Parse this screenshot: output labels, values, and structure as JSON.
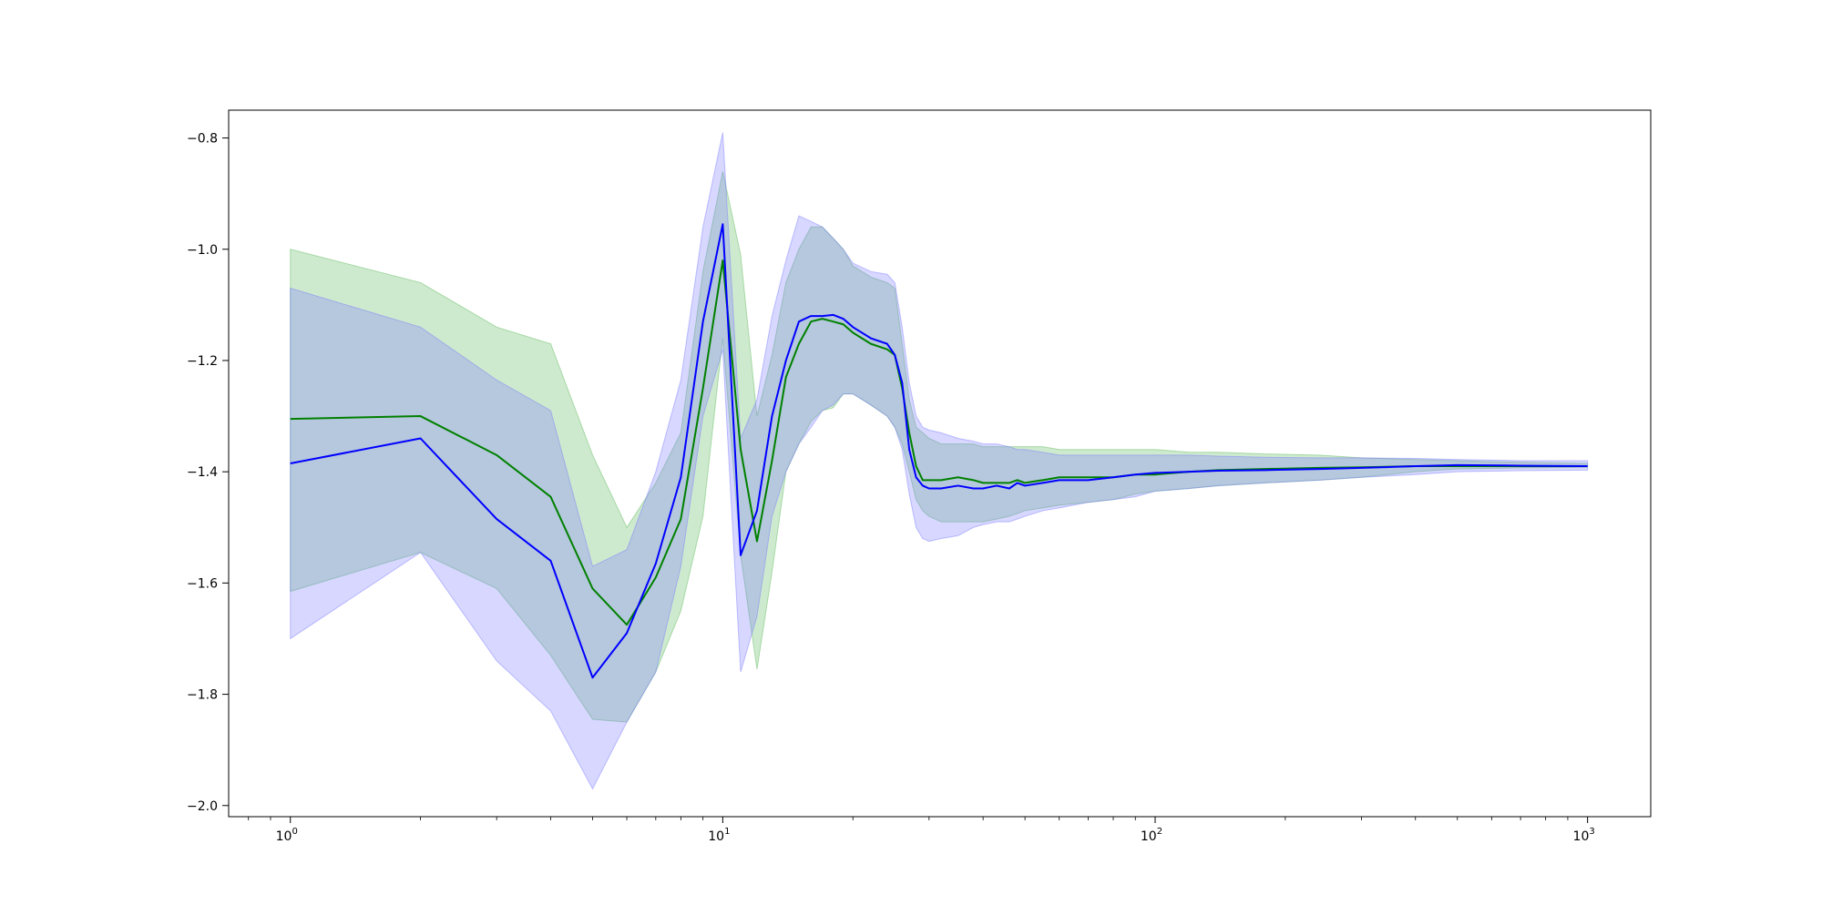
{
  "chart_data": {
    "type": "line",
    "title": "",
    "xlabel": "",
    "ylabel": "",
    "x_scale": "log",
    "xlim": [
      0.72,
      1400
    ],
    "ylim": [
      -2.02,
      -0.75
    ],
    "grid": false,
    "legend": "none",
    "x_ticks": [
      {
        "value": 1,
        "base": "10",
        "exp": "0"
      },
      {
        "value": 10,
        "base": "10",
        "exp": "1"
      },
      {
        "value": 100,
        "base": "10",
        "exp": "2"
      },
      {
        "value": 1000,
        "base": "10",
        "exp": "3"
      }
    ],
    "y_ticks": [
      {
        "value": -0.8,
        "label": "−0.8"
      },
      {
        "value": -1.0,
        "label": "−1.0"
      },
      {
        "value": -1.2,
        "label": "−1.2"
      },
      {
        "value": -1.4,
        "label": "−1.4"
      },
      {
        "value": -1.6,
        "label": "−1.6"
      },
      {
        "value": -1.8,
        "label": "−1.8"
      },
      {
        "value": -2.0,
        "label": "−2.0"
      }
    ],
    "series": [
      {
        "color": "#008000",
        "band_color": "#5cb85c",
        "x": [
          1,
          2,
          3,
          4,
          5,
          6,
          7,
          8,
          9,
          10,
          11,
          12,
          13,
          14,
          15,
          16,
          17,
          18,
          19,
          20,
          22,
          24,
          25,
          26,
          27,
          28,
          29,
          30,
          32,
          35,
          38,
          40,
          43,
          46,
          48,
          50,
          55,
          60,
          70,
          80,
          90,
          100,
          120,
          140,
          180,
          240,
          300,
          400,
          500,
          700,
          1000
        ],
        "y": [
          -1.305,
          -1.3,
          -1.37,
          -1.445,
          -1.61,
          -1.675,
          -1.59,
          -1.485,
          -1.25,
          -1.02,
          -1.36,
          -1.525,
          -1.38,
          -1.23,
          -1.17,
          -1.13,
          -1.125,
          -1.13,
          -1.135,
          -1.15,
          -1.17,
          -1.18,
          -1.19,
          -1.25,
          -1.33,
          -1.39,
          -1.415,
          -1.415,
          -1.415,
          -1.41,
          -1.415,
          -1.42,
          -1.42,
          -1.42,
          -1.415,
          -1.42,
          -1.415,
          -1.41,
          -1.41,
          -1.41,
          -1.405,
          -1.405,
          -1.4,
          -1.397,
          -1.395,
          -1.393,
          -1.392,
          -1.39,
          -1.39,
          -1.39,
          -1.39
        ],
        "lower": [
          -1.615,
          -1.545,
          -1.61,
          -1.73,
          -1.845,
          -1.85,
          -1.76,
          -1.65,
          -1.48,
          -1.16,
          -1.55,
          -1.755,
          -1.58,
          -1.4,
          -1.35,
          -1.31,
          -1.29,
          -1.285,
          -1.26,
          -1.26,
          -1.28,
          -1.3,
          -1.32,
          -1.35,
          -1.4,
          -1.45,
          -1.47,
          -1.48,
          -1.49,
          -1.49,
          -1.49,
          -1.49,
          -1.485,
          -1.48,
          -1.475,
          -1.47,
          -1.465,
          -1.46,
          -1.455,
          -1.45,
          -1.44,
          -1.435,
          -1.43,
          -1.425,
          -1.42,
          -1.415,
          -1.41,
          -1.4,
          -1.395,
          -1.393,
          -1.392
        ],
        "upper": [
          -1.0,
          -1.06,
          -1.14,
          -1.17,
          -1.37,
          -1.5,
          -1.42,
          -1.33,
          -1.04,
          -0.86,
          -1.01,
          -1.3,
          -1.19,
          -1.06,
          -1.0,
          -0.96,
          -0.96,
          -0.98,
          -1.0,
          -1.03,
          -1.05,
          -1.06,
          -1.07,
          -1.17,
          -1.27,
          -1.32,
          -1.33,
          -1.34,
          -1.35,
          -1.35,
          -1.35,
          -1.355,
          -1.355,
          -1.355,
          -1.355,
          -1.355,
          -1.355,
          -1.36,
          -1.36,
          -1.36,
          -1.36,
          -1.36,
          -1.365,
          -1.365,
          -1.368,
          -1.37,
          -1.375,
          -1.378,
          -1.38,
          -1.383,
          -1.385
        ]
      },
      {
        "color": "#0000ff",
        "band_color": "#7b7bff",
        "x": [
          1,
          2,
          3,
          4,
          5,
          6,
          7,
          8,
          9,
          10,
          11,
          12,
          13,
          14,
          15,
          16,
          17,
          18,
          19,
          20,
          22,
          24,
          25,
          26,
          27,
          28,
          29,
          30,
          32,
          35,
          38,
          40,
          43,
          46,
          48,
          50,
          55,
          60,
          70,
          80,
          90,
          100,
          120,
          140,
          180,
          240,
          300,
          400,
          500,
          700,
          1000
        ],
        "y": [
          -1.385,
          -1.34,
          -1.485,
          -1.56,
          -1.77,
          -1.69,
          -1.565,
          -1.41,
          -1.13,
          -0.955,
          -1.55,
          -1.47,
          -1.3,
          -1.2,
          -1.13,
          -1.12,
          -1.12,
          -1.118,
          -1.125,
          -1.14,
          -1.16,
          -1.17,
          -1.19,
          -1.24,
          -1.36,
          -1.41,
          -1.425,
          -1.43,
          -1.43,
          -1.425,
          -1.43,
          -1.43,
          -1.425,
          -1.43,
          -1.42,
          -1.425,
          -1.42,
          -1.415,
          -1.415,
          -1.41,
          -1.405,
          -1.402,
          -1.4,
          -1.398,
          -1.397,
          -1.395,
          -1.393,
          -1.39,
          -1.388,
          -1.389,
          -1.39
        ],
        "lower": [
          -1.7,
          -1.545,
          -1.74,
          -1.83,
          -1.97,
          -1.85,
          -1.76,
          -1.57,
          -1.3,
          -1.18,
          -1.76,
          -1.66,
          -1.48,
          -1.4,
          -1.35,
          -1.32,
          -1.29,
          -1.28,
          -1.26,
          -1.26,
          -1.28,
          -1.3,
          -1.32,
          -1.36,
          -1.44,
          -1.5,
          -1.52,
          -1.525,
          -1.52,
          -1.515,
          -1.5,
          -1.495,
          -1.49,
          -1.49,
          -1.485,
          -1.48,
          -1.47,
          -1.465,
          -1.455,
          -1.45,
          -1.445,
          -1.435,
          -1.43,
          -1.425,
          -1.42,
          -1.415,
          -1.41,
          -1.405,
          -1.4,
          -1.398,
          -1.397
        ],
        "upper": [
          -1.07,
          -1.14,
          -1.235,
          -1.29,
          -1.57,
          -1.54,
          -1.4,
          -1.235,
          -0.96,
          -0.79,
          -1.34,
          -1.27,
          -1.12,
          -1.02,
          -0.94,
          -0.95,
          -0.96,
          -0.98,
          -1.0,
          -1.025,
          -1.04,
          -1.045,
          -1.06,
          -1.14,
          -1.24,
          -1.3,
          -1.32,
          -1.325,
          -1.33,
          -1.34,
          -1.345,
          -1.35,
          -1.35,
          -1.355,
          -1.36,
          -1.36,
          -1.365,
          -1.37,
          -1.37,
          -1.37,
          -1.37,
          -1.37,
          -1.37,
          -1.372,
          -1.374,
          -1.375,
          -1.375,
          -1.376,
          -1.378,
          -1.38,
          -1.38
        ]
      }
    ]
  }
}
